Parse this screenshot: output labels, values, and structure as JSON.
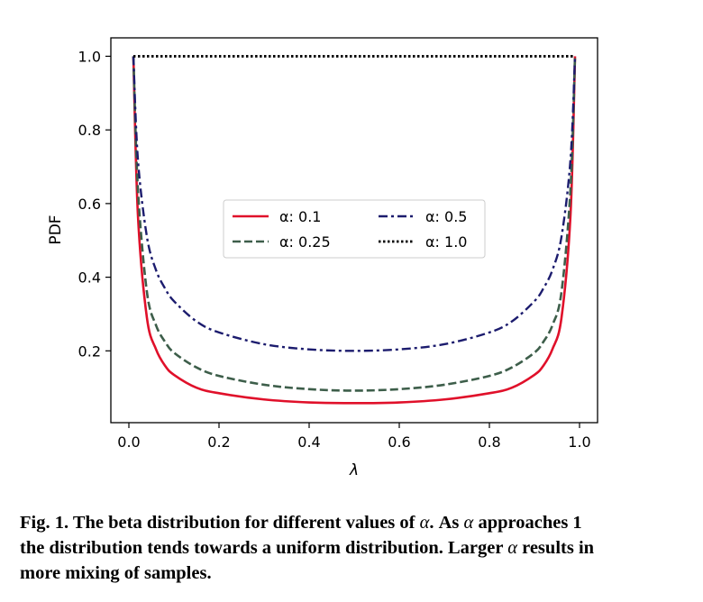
{
  "chart_data": {
    "type": "line",
    "title": "",
    "xlabel": "λ",
    "ylabel": "PDF",
    "xlim": [
      -0.04,
      1.04
    ],
    "ylim": [
      0.005,
      1.05
    ],
    "x_ticks": [
      "0.0",
      "0.2",
      "0.4",
      "0.6",
      "0.8",
      "1.0"
    ],
    "y_ticks": [
      "0.2",
      "0.4",
      "0.6",
      "0.8",
      "1.0"
    ],
    "grid": false,
    "legend_placement": "center",
    "legend": [
      {
        "label": "α: 0.1",
        "color": "#e0102a",
        "style": "solid"
      },
      {
        "label": "α: 0.25",
        "color": "#3d5e4a",
        "style": "dashed"
      },
      {
        "label": "α: 0.5",
        "color": "#1c1c6e",
        "style": "dashdot"
      },
      {
        "label": "α: 1.0",
        "color": "#000000",
        "style": "dotted"
      }
    ],
    "x": [
      0.01,
      0.02,
      0.04,
      0.06,
      0.08,
      0.1,
      0.15,
      0.2,
      0.3,
      0.4,
      0.5,
      0.6,
      0.7,
      0.8,
      0.85,
      0.9,
      0.92,
      0.94,
      0.96,
      0.98,
      0.99
    ],
    "series": [
      {
        "name": "α: 0.1",
        "values": [
          1.0,
          0.57,
          0.29,
          0.205,
          0.16,
          0.135,
          0.1,
          0.085,
          0.068,
          0.06,
          0.058,
          0.06,
          0.068,
          0.085,
          0.1,
          0.135,
          0.16,
          0.205,
          0.29,
          0.57,
          1.0
        ]
      },
      {
        "name": "α: 0.25",
        "values": [
          1.0,
          0.64,
          0.36,
          0.27,
          0.225,
          0.195,
          0.155,
          0.132,
          0.108,
          0.096,
          0.092,
          0.096,
          0.108,
          0.132,
          0.155,
          0.195,
          0.225,
          0.27,
          0.36,
          0.64,
          1.0
        ]
      },
      {
        "name": "α: 0.5",
        "values": [
          1.0,
          0.72,
          0.51,
          0.42,
          0.37,
          0.335,
          0.28,
          0.25,
          0.218,
          0.204,
          0.2,
          0.204,
          0.218,
          0.25,
          0.28,
          0.335,
          0.37,
          0.42,
          0.51,
          0.72,
          1.0
        ]
      },
      {
        "name": "α: 1.0",
        "values": [
          1.0,
          1.0,
          1.0,
          1.0,
          1.0,
          1.0,
          1.0,
          1.0,
          1.0,
          1.0,
          1.0,
          1.0,
          1.0,
          1.0,
          1.0,
          1.0,
          1.0,
          1.0,
          1.0,
          1.0,
          1.0
        ]
      }
    ]
  },
  "caption": {
    "line1_a": "Fig. 1. The beta distribution for different values of ",
    "alpha1": "α",
    "line1_b": ". As ",
    "alpha2": "α",
    "line1_c": " approaches 1",
    "line2": "the distribution tends towards a uniform distribution. Larger ",
    "alpha3": "α",
    "line2_b": " results in",
    "line3": "more mixing of samples."
  }
}
